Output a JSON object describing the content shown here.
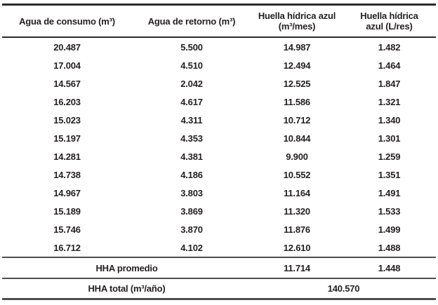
{
  "table": {
    "columns": [
      {
        "label": "Agua de consumo (m³)"
      },
      {
        "label": "Agua de retorno (m³)"
      },
      {
        "label": "Huella hídrica azul (m³/mes)"
      },
      {
        "label": "Huella hídrica azul (L/res)"
      }
    ],
    "rows": [
      [
        "20.487",
        "5.500",
        "14.987",
        "1.482"
      ],
      [
        "17.004",
        "4.510",
        "12.494",
        "1.464"
      ],
      [
        "14.567",
        "2.042",
        "12.525",
        "1.847"
      ],
      [
        "16.203",
        "4.617",
        "11.586",
        "1.321"
      ],
      [
        "15.023",
        "4.311",
        "10.712",
        "1.340"
      ],
      [
        "15.197",
        "4.353",
        "10.844",
        "1.301"
      ],
      [
        "14.281",
        "4.381",
        "9.900",
        "1.259"
      ],
      [
        "14.738",
        "4.186",
        "10.552",
        "1.351"
      ],
      [
        "14.967",
        "3.803",
        "11.164",
        "1.491"
      ],
      [
        "15.189",
        "3.869",
        "11.320",
        "1.533"
      ],
      [
        "15.746",
        "3.870",
        "11.876",
        "1.499"
      ],
      [
        "16.712",
        "4.102",
        "12.610",
        "1.488"
      ]
    ],
    "footer": {
      "promedio_label": "HHA promedio",
      "promedio_m3mes": "11.714",
      "promedio_lres": "1.448",
      "total_label": "HHA total (m³/año)",
      "total_value": "140.570"
    },
    "colors": {
      "text": "#231f20",
      "rule_dark": "#2b2b2b",
      "rule_gray": "#4f4f4f"
    }
  }
}
